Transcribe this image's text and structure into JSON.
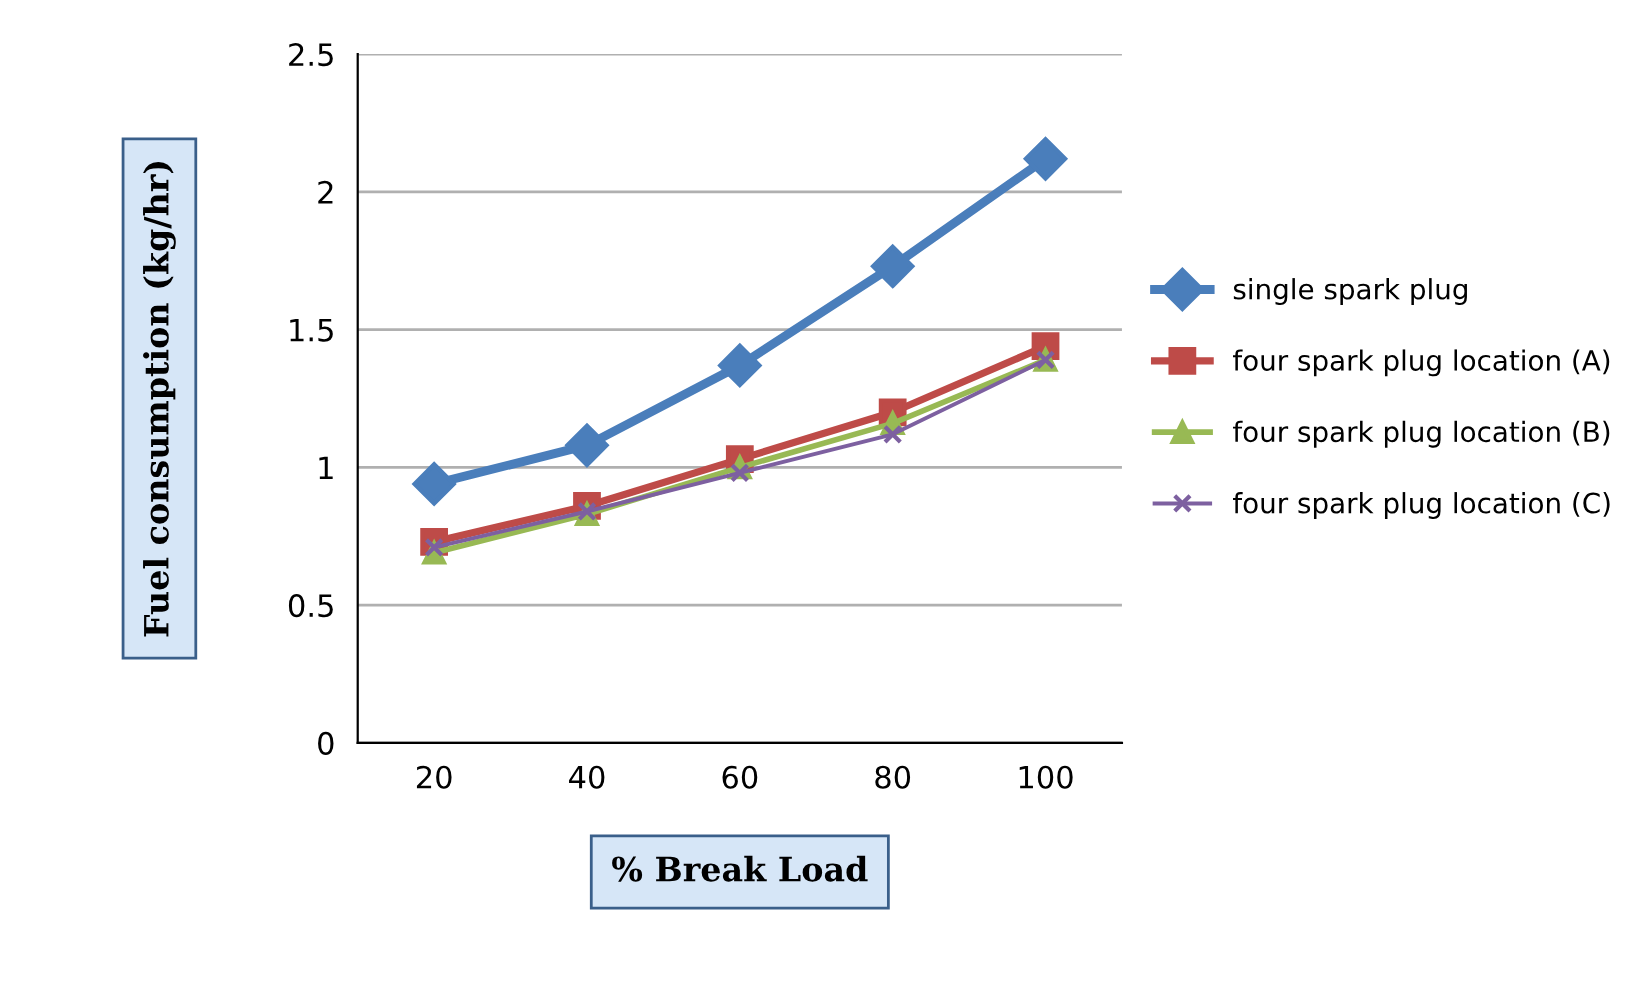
{
  "chart_data": {
    "type": "line",
    "xlabel": "% Break Load",
    "ylabel": "Fuel consumption (kg/hr)",
    "categories": [
      "20",
      "40",
      "60",
      "80",
      "100"
    ],
    "series": [
      {
        "name": "single spark plug",
        "color": "#4a7ebb",
        "marker": "diamond",
        "values": [
          0.94,
          1.08,
          1.37,
          1.73,
          2.12
        ]
      },
      {
        "name": "four spark plug location (A)",
        "color": "#be4b48",
        "marker": "square",
        "values": [
          0.73,
          0.86,
          1.03,
          1.2,
          1.44
        ]
      },
      {
        "name": "four spark plug location (B)",
        "color": "#98b954",
        "marker": "triangle",
        "values": [
          0.69,
          0.83,
          1.0,
          1.16,
          1.39
        ]
      },
      {
        "name": "four spark plug location (C)",
        "color": "#7d60a0",
        "marker": "cross",
        "values": [
          0.71,
          0.84,
          0.98,
          1.12,
          1.39
        ]
      }
    ],
    "ylim": [
      0,
      2.5
    ],
    "yticks": [
      0,
      0.5,
      1,
      1.5,
      2,
      2.5
    ],
    "grid": "y",
    "legend": "right"
  }
}
